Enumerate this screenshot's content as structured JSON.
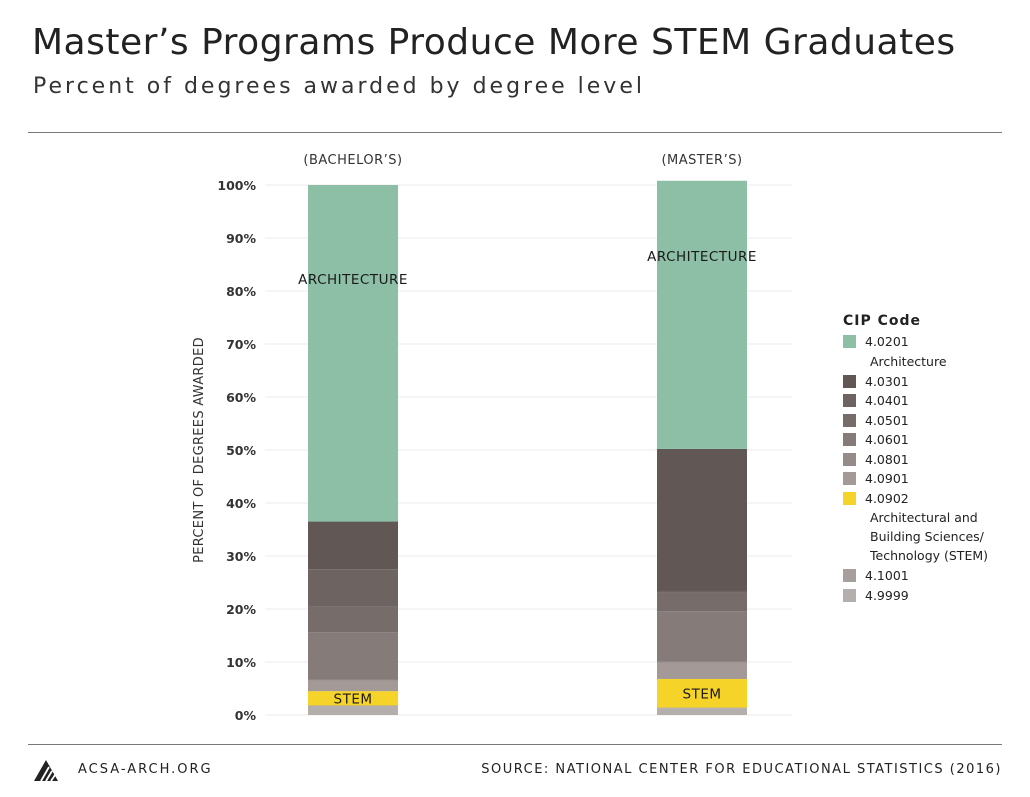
{
  "header": {
    "title": "Master’s Programs Produce More STEM Graduates",
    "subtitle": "Percent of degrees awarded by degree level"
  },
  "footer": {
    "site": "ACSA-ARCH.ORG",
    "source": "SOURCE: NATIONAL CENTER FOR EDUCATIONAL STATISTICS (2016)",
    "logo_icon": "acsa-triangle-logo-icon"
  },
  "colors": {
    "architecture": "#8DBFA6",
    "stem": "#F5D328",
    "grid": "#EBEBEB"
  },
  "chart_data": {
    "type": "bar",
    "stacked": true,
    "ylabel": "PERCENT OF DEGREES AWARDED",
    "xlabel": "",
    "ylim": [
      0,
      100
    ],
    "yticks": [
      "0%",
      "10%",
      "20%",
      "30%",
      "40%",
      "50%",
      "60%",
      "70%",
      "80%",
      "90%",
      "100%"
    ],
    "grid": true,
    "categories": [
      "(BACHELOR’S)",
      "(MASTER’S)"
    ],
    "legend": {
      "title": "CIP Code",
      "placement": "right"
    },
    "series": [
      {
        "name": "4.9999",
        "color": "#B4AEAC",
        "values": [
          1.7,
          1.3
        ]
      },
      {
        "name": "4.1001",
        "color": "#A79F9D",
        "values": [
          0.1,
          0.1
        ]
      },
      {
        "name": "4.0902",
        "color": "#F5D328",
        "values": [
          2.7,
          5.4
        ],
        "description": "Architectural and\nBuilding Sciences/\nTechnology (STEM)"
      },
      {
        "name": "4.0901",
        "color": "#A39A98",
        "values": [
          2.0,
          3.1
        ]
      },
      {
        "name": "4.0801",
        "color": "#958C8A",
        "values": [
          0.2,
          0.2
        ]
      },
      {
        "name": "4.0601",
        "color": "#857C7A",
        "values": [
          8.9,
          9.5
        ]
      },
      {
        "name": "4.0501",
        "color": "#766C6A",
        "values": [
          4.8,
          3.6
        ]
      },
      {
        "name": "4.0401",
        "color": "#6D6461",
        "values": [
          7.1,
          0.2
        ]
      },
      {
        "name": "4.0301",
        "color": "#615855",
        "values": [
          9.0,
          26.8
        ]
      },
      {
        "name": "4.0201",
        "color": "#8DBFA6",
        "values": [
          63.5,
          50.6
        ],
        "description": "Architecture"
      }
    ],
    "annotations": [
      {
        "text": "ARCHITECTURE",
        "category": 0,
        "series": "4.0201"
      },
      {
        "text": "ARCHITECTURE",
        "category": 1,
        "series": "4.0201"
      },
      {
        "text": "STEM",
        "category": 0,
        "series": "4.0902"
      },
      {
        "text": "STEM",
        "category": 1,
        "series": "4.0902"
      }
    ]
  }
}
